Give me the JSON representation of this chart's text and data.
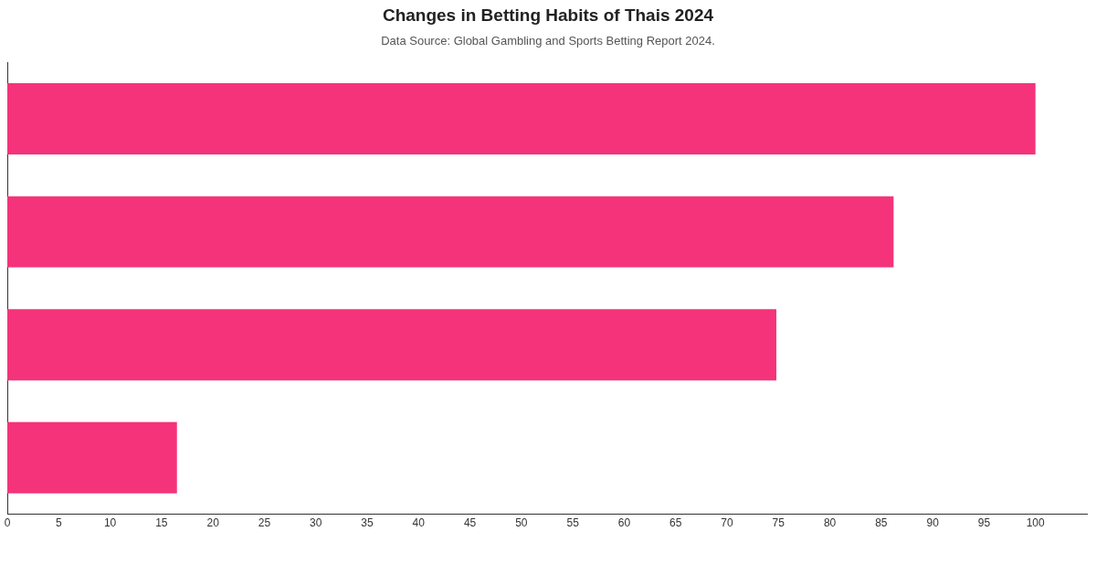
{
  "chart_data": {
    "type": "bar",
    "orientation": "horizontal",
    "title": "Changes in Betting Habits of Thais 2024",
    "subtitle": "Data Source: Global Gambling and Sports Betting Report 2024.",
    "categories": [
      null,
      null,
      null,
      null
    ],
    "values": [
      100,
      86.2,
      74.8,
      16.5
    ],
    "color": "#f5337a",
    "xlim": [
      0,
      105
    ],
    "xticks": [
      0,
      5,
      10,
      15,
      20,
      25,
      30,
      35,
      40,
      45,
      50,
      55,
      60,
      65,
      70,
      75,
      80,
      85,
      90,
      95,
      100
    ],
    "grid": false,
    "legend": false
  }
}
